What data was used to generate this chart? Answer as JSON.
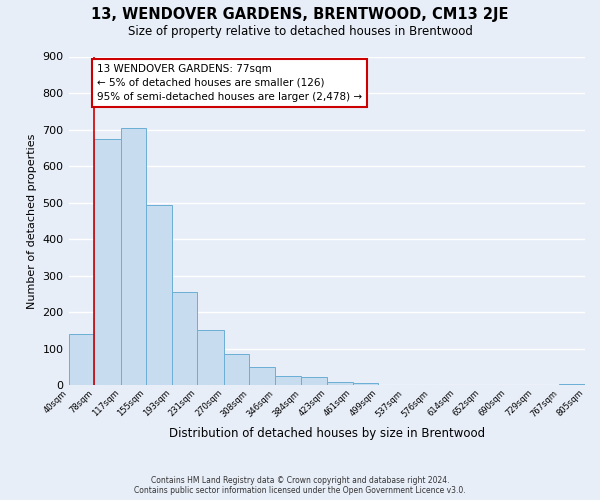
{
  "title": "13, WENDOVER GARDENS, BRENTWOOD, CM13 2JE",
  "subtitle": "Size of property relative to detached houses in Brentwood",
  "xlabel": "Distribution of detached houses by size in Brentwood",
  "ylabel": "Number of detached properties",
  "bar_values": [
    140,
    675,
    705,
    493,
    255,
    153,
    87,
    51,
    25,
    22,
    10,
    7,
    2,
    1,
    1,
    0,
    0,
    0,
    0,
    5
  ],
  "bin_edges": [
    40,
    78,
    117,
    155,
    193,
    231,
    270,
    308,
    346,
    384,
    423,
    461,
    499,
    537,
    576,
    614,
    652,
    690,
    729,
    767,
    805
  ],
  "x_tick_labels": [
    "40sqm",
    "78sqm",
    "117sqm",
    "155sqm",
    "193sqm",
    "231sqm",
    "270sqm",
    "308sqm",
    "346sqm",
    "384sqm",
    "423sqm",
    "461sqm",
    "499sqm",
    "537sqm",
    "576sqm",
    "614sqm",
    "652sqm",
    "690sqm",
    "729sqm",
    "767sqm",
    "805sqm"
  ],
  "bar_color": "#c8dcf0",
  "bar_edge_color": "#6baed6",
  "property_line_x": 78,
  "property_line_color": "#cc0000",
  "annotation_title": "13 WENDOVER GARDENS: 77sqm",
  "annotation_line1": "← 5% of detached houses are smaller (126)",
  "annotation_line2": "95% of semi-detached houses are larger (2,478) →",
  "annotation_box_color": "#ffffff",
  "annotation_box_edge_color": "#cc0000",
  "ylim": [
    0,
    900
  ],
  "yticks": [
    0,
    100,
    200,
    300,
    400,
    500,
    600,
    700,
    800,
    900
  ],
  "background_color": "#e8eef8",
  "grid_color": "#ffffff",
  "footer_line1": "Contains HM Land Registry data © Crown copyright and database right 2024.",
  "footer_line2": "Contains public sector information licensed under the Open Government Licence v3.0."
}
